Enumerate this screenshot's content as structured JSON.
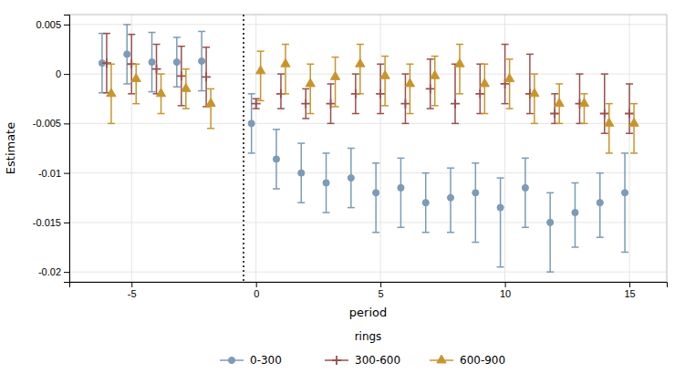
{
  "chart_data": {
    "type": "scatter",
    "xlabel": "period",
    "ylabel": "Estimate",
    "legend_title": "rings",
    "legend": "bottom",
    "grid": true,
    "xlim": [
      -7.5,
      16.5
    ],
    "xticks": [
      -5,
      0,
      5,
      10,
      15
    ],
    "ylim": [
      -0.021,
      0.006
    ],
    "yticks": [
      -0.02,
      -0.015,
      -0.01,
      -0.005,
      0,
      0.005
    ],
    "vlines": [
      -0.5
    ],
    "x": [
      -6,
      -5,
      -4,
      -3,
      -2,
      0,
      1,
      2,
      3,
      4,
      5,
      6,
      7,
      8,
      9,
      10,
      11,
      12,
      13,
      14,
      15
    ],
    "series": [
      {
        "name": "0-300",
        "color": "#7b9bb8",
        "marker": "circle",
        "values": [
          0.0011,
          0.002,
          0.0012,
          0.0012,
          0.0013,
          -0.005,
          -0.0086,
          -0.01,
          -0.011,
          -0.0105,
          -0.012,
          -0.0115,
          -0.013,
          -0.0125,
          -0.012,
          -0.0135,
          -0.0115,
          -0.015,
          -0.014,
          -0.013,
          -0.012
        ],
        "ci_lower": [
          -0.0019,
          -0.001,
          -0.0018,
          -0.0013,
          -0.0017,
          -0.008,
          -0.0116,
          -0.013,
          -0.014,
          -0.0135,
          -0.016,
          -0.0155,
          -0.016,
          -0.016,
          -0.017,
          -0.0195,
          -0.0155,
          -0.02,
          -0.0175,
          -0.0165,
          -0.018
        ],
        "ci_upper": [
          0.0041,
          0.005,
          0.0042,
          0.0037,
          0.0043,
          -0.002,
          -0.0056,
          -0.007,
          -0.008,
          -0.0075,
          -0.009,
          -0.0085,
          -0.01,
          -0.0095,
          -0.009,
          -0.0105,
          -0.0085,
          -0.012,
          -0.011,
          -0.01,
          -0.008
        ]
      },
      {
        "name": "300-600",
        "color": "#9b4f4f",
        "marker": "plus",
        "values": [
          0.0011,
          0.001,
          0.0005,
          -0.0002,
          -0.0003,
          -0.003,
          -0.002,
          -0.003,
          -0.003,
          -0.002,
          -0.002,
          -0.003,
          -0.0015,
          -0.003,
          -0.002,
          -0.001,
          -0.002,
          -0.004,
          -0.003,
          -0.004,
          -0.004
        ],
        "ci_lower": [
          -0.0019,
          -0.002,
          -0.002,
          -0.0032,
          -0.0033,
          -0.0035,
          -0.0035,
          -0.0045,
          -0.005,
          -0.004,
          -0.004,
          -0.005,
          -0.0035,
          -0.005,
          -0.004,
          -0.003,
          -0.004,
          -0.005,
          -0.005,
          -0.006,
          -0.006
        ],
        "ci_upper": [
          0.0041,
          0.004,
          0.003,
          0.0028,
          0.0027,
          -0.0025,
          0.0,
          -0.0015,
          -0.001,
          0.0,
          0.001,
          0.0,
          0.0015,
          0.001,
          0.001,
          0.003,
          0.002,
          -0.002,
          0.0,
          0.0,
          -0.001
        ]
      },
      {
        "name": "600-900",
        "color": "#c9952a",
        "marker": "triangle",
        "values": [
          -0.002,
          -0.0005,
          -0.002,
          -0.0015,
          -0.003,
          0.0003,
          0.001,
          -0.001,
          -0.0003,
          0.001,
          -0.0002,
          -0.001,
          -0.0002,
          0.001,
          -0.001,
          -0.0005,
          -0.002,
          -0.003,
          -0.003,
          -0.005,
          -0.005
        ],
        "ci_lower": [
          -0.005,
          -0.003,
          -0.004,
          -0.0035,
          -0.0055,
          -0.0027,
          -0.002,
          -0.004,
          -0.0033,
          -0.002,
          -0.0032,
          -0.004,
          -0.0032,
          -0.002,
          -0.004,
          -0.0035,
          -0.005,
          -0.005,
          -0.005,
          -0.008,
          -0.008
        ],
        "ci_upper": [
          0.001,
          0.001,
          0.0,
          0.0005,
          -0.0015,
          0.0023,
          0.003,
          0.001,
          0.0017,
          0.003,
          0.0018,
          0.001,
          0.0018,
          0.003,
          0.001,
          0.0015,
          0.0,
          -0.001,
          -0.002,
          -0.003,
          -0.003
        ]
      }
    ]
  }
}
